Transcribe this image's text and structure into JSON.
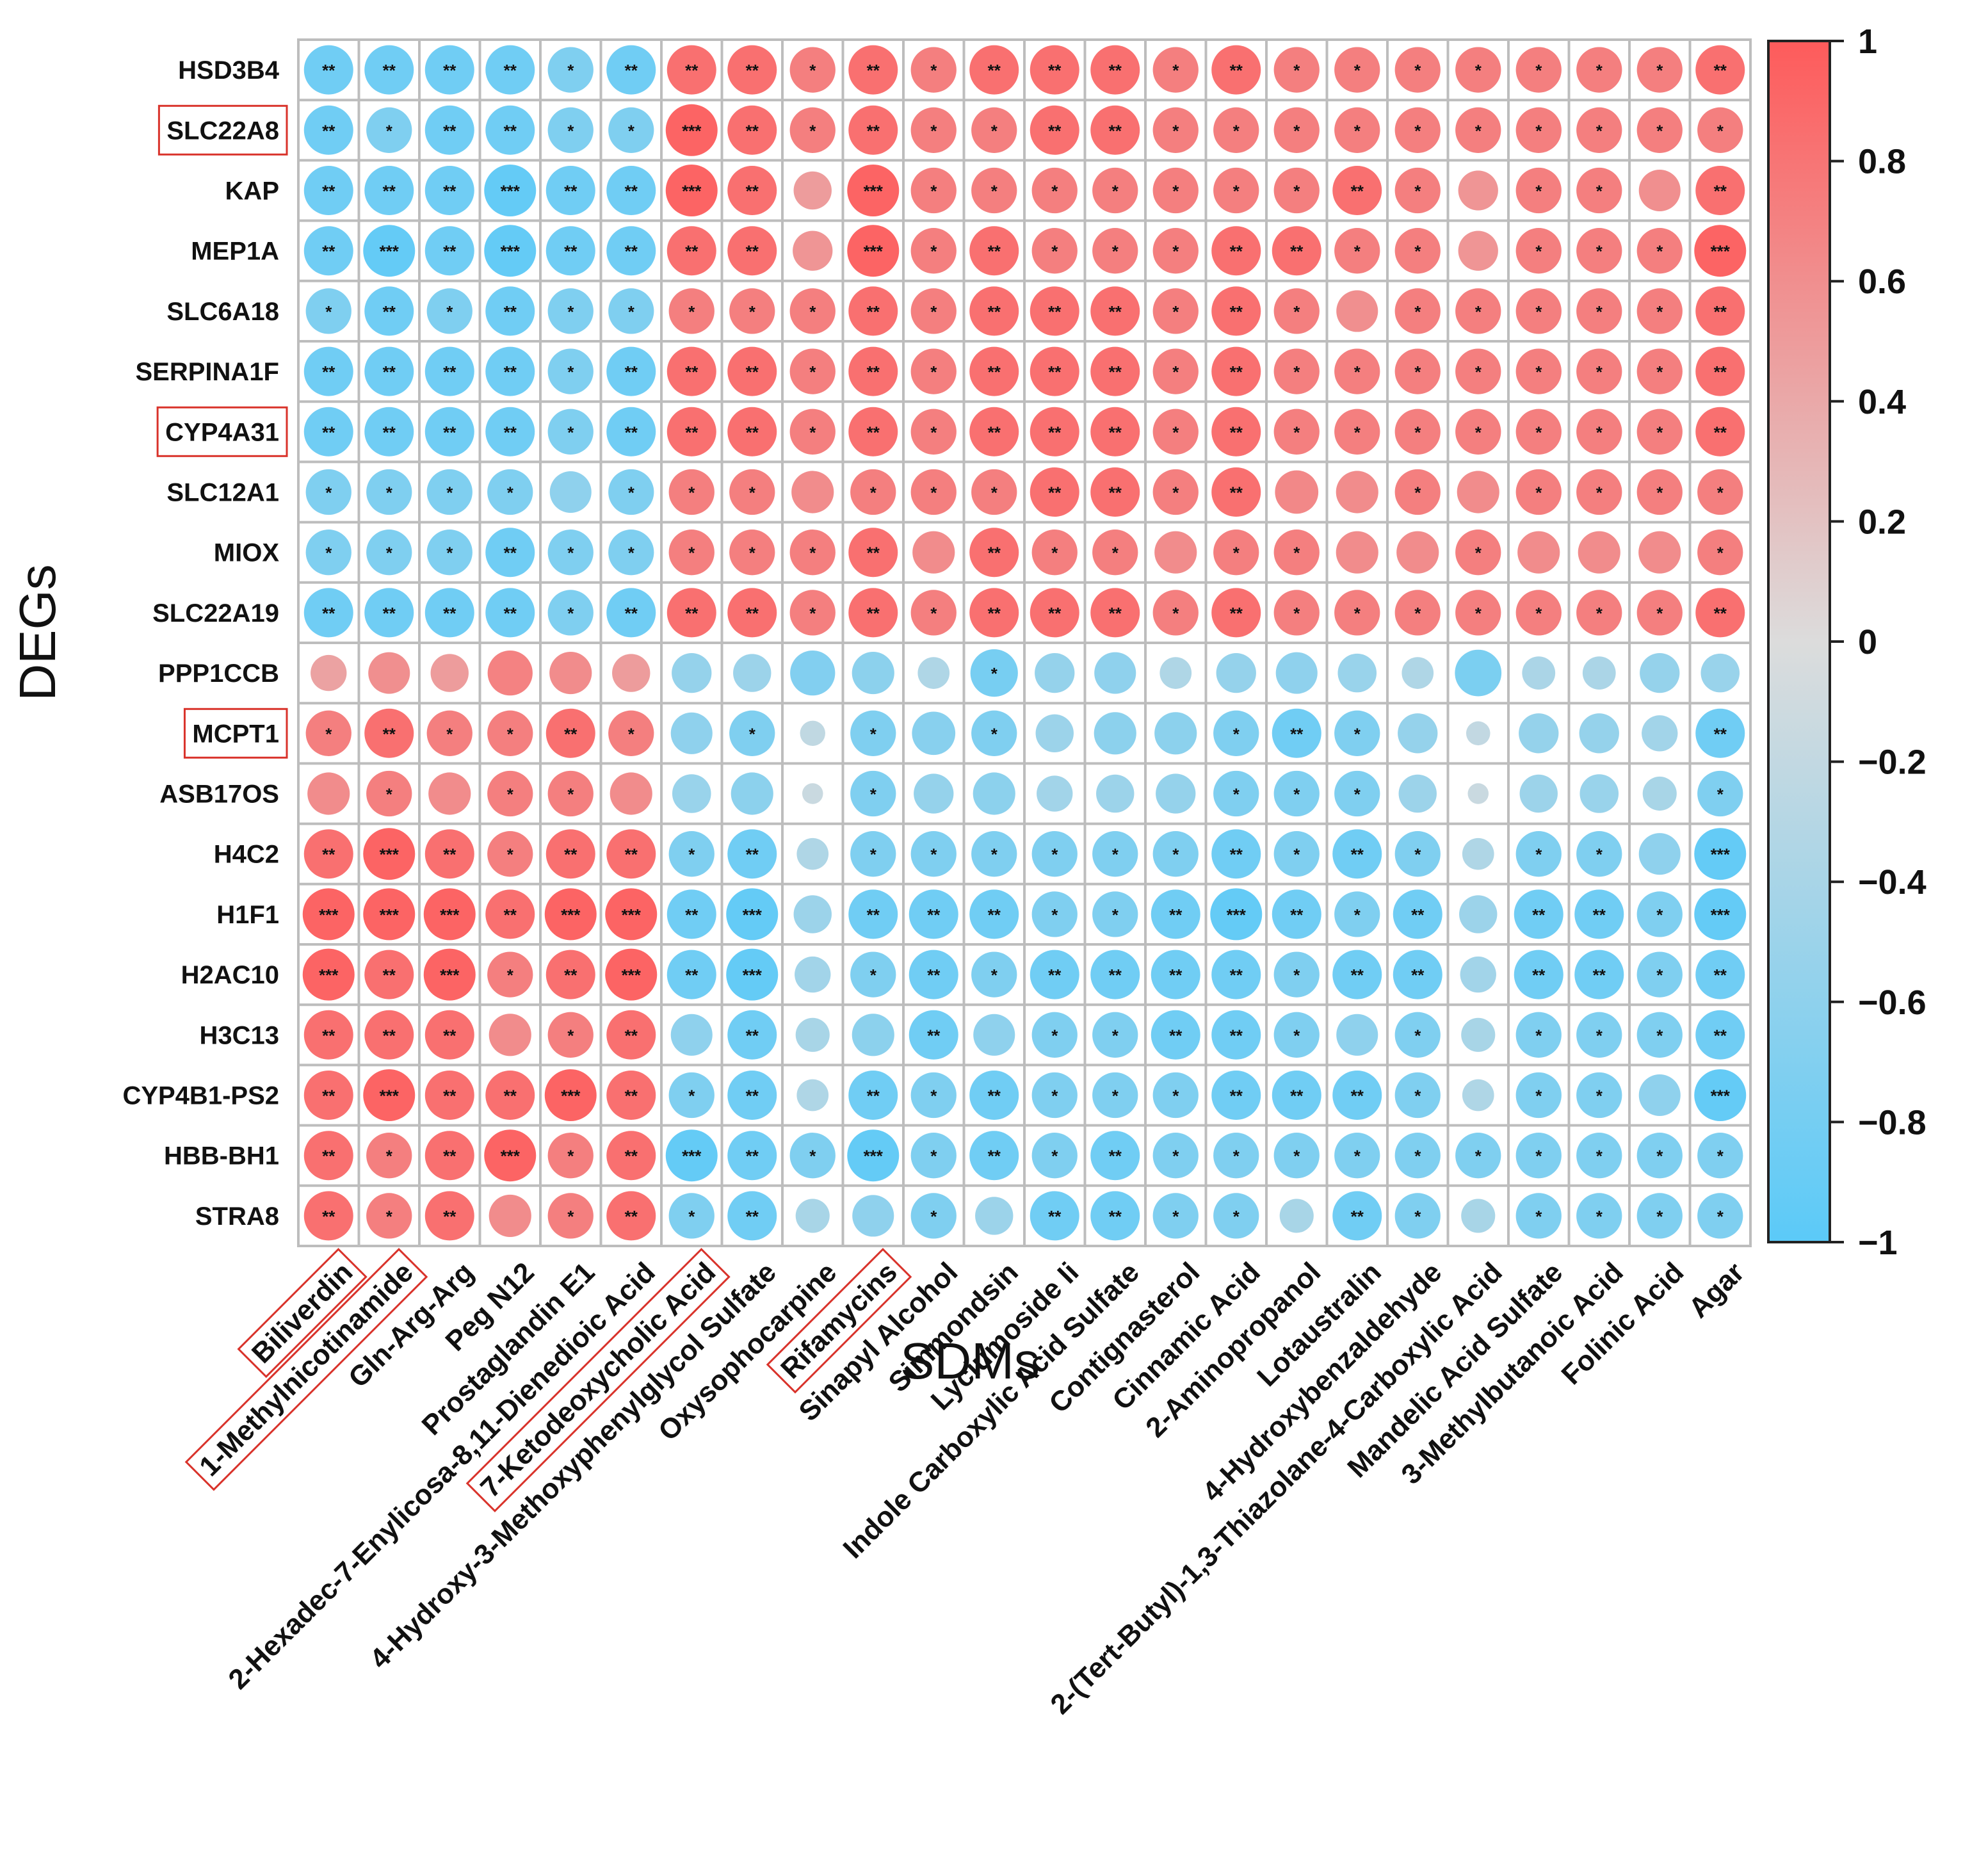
{
  "chart_data": {
    "type": "heatmap",
    "subtype": "correlation-circle",
    "xlabel": "SDMs",
    "ylabel": "DEGs",
    "rows": [
      "HSD3B4",
      "SLC22A8",
      "KAP",
      "MEP1A",
      "SLC6A18",
      "SERPINA1F",
      "CYP4A31",
      "SLC12A1",
      "MIOX",
      "SLC22A19",
      "PPP1CCB",
      "MCPT1",
      "ASB17OS",
      "H4C2",
      "H1F1",
      "H2AC10",
      "H3C13",
      "CYP4B1-PS2",
      "HBB-BH1",
      "STRA8"
    ],
    "columns": [
      "Biliverdin",
      "1-Methylnicotinamide",
      "Gln-Arg-Arg",
      "Peg N12",
      "Prostaglandin E1",
      "2-Hexadec-7-Enylicosa-8,11-Dienedioic Acid",
      "7-Ketodeoxycholic Acid",
      "4-Hydroxy-3-Methoxyphenylglycol Sulfate",
      "Oxysophocarpine",
      "Rifamycins",
      "Sinapyl Alcohol",
      "Simmondsin",
      "Lyciumoside Ii",
      "Indole Carboxylic Acid Sulfate",
      "Contignasterol",
      "Cinnamic Acid",
      "2-Aminopropanol",
      "Lotaustralin",
      "4-Hydroxybenzaldehyde",
      "2-(Tert-Butyl)-1,3-Thiazolane-4-Carboxylic Acid",
      "Mandelic Acid Sulfate",
      "3-Methylbutanoic Acid",
      "Folinic Acid",
      "Agar"
    ],
    "highlighted_rows": [
      "SLC22A8",
      "CYP4A31",
      "MCPT1"
    ],
    "highlighted_columns": [
      "Biliverdin",
      "1-Methylnicotinamide",
      "7-Ketodeoxycholic Acid",
      "Rifamycins"
    ],
    "significance": [
      [
        "**",
        "**",
        "**",
        "**",
        "*",
        "**",
        "**",
        "**",
        "*",
        "**",
        "*",
        "**",
        "**",
        "**",
        "*",
        "**",
        "*",
        "*",
        "*",
        "*",
        "*",
        "*",
        "*",
        "**"
      ],
      [
        "**",
        "*",
        "**",
        "**",
        "*",
        "*",
        "***",
        "**",
        "*",
        "**",
        "*",
        "*",
        "**",
        "**",
        "*",
        "*",
        "*",
        "*",
        "*",
        "*",
        "*",
        "*",
        "*",
        "*"
      ],
      [
        "**",
        "**",
        "**",
        "***",
        "**",
        "**",
        "***",
        "**",
        "",
        "***",
        "*",
        "*",
        "*",
        "*",
        "*",
        "*",
        "*",
        "**",
        "*",
        "",
        "*",
        "*",
        "",
        "**"
      ],
      [
        "**",
        "***",
        "**",
        "***",
        "**",
        "**",
        "**",
        "**",
        "",
        "***",
        "*",
        "**",
        "*",
        "*",
        "*",
        "**",
        "**",
        "*",
        "*",
        "",
        "*",
        "*",
        "*",
        "***"
      ],
      [
        "*",
        "**",
        "*",
        "**",
        "*",
        "*",
        "*",
        "*",
        "*",
        "**",
        "*",
        "**",
        "**",
        "**",
        "*",
        "**",
        "*",
        "",
        "*",
        "*",
        "*",
        "*",
        "*",
        "**"
      ],
      [
        "**",
        "**",
        "**",
        "**",
        "*",
        "**",
        "**",
        "**",
        "*",
        "**",
        "*",
        "**",
        "**",
        "**",
        "*",
        "**",
        "*",
        "*",
        "*",
        "*",
        "*",
        "*",
        "*",
        "**"
      ],
      [
        "**",
        "**",
        "**",
        "**",
        "*",
        "**",
        "**",
        "**",
        "*",
        "**",
        "*",
        "**",
        "**",
        "**",
        "*",
        "**",
        "*",
        "*",
        "*",
        "*",
        "*",
        "*",
        "*",
        "**"
      ],
      [
        "*",
        "*",
        "*",
        "*",
        "",
        "*",
        "*",
        "*",
        "",
        "*",
        "*",
        "*",
        "**",
        "**",
        "*",
        "**",
        "",
        "",
        "*",
        "",
        "*",
        "*",
        "*",
        "*"
      ],
      [
        "*",
        "*",
        "*",
        "**",
        "*",
        "*",
        "*",
        "*",
        "*",
        "**",
        "",
        "**",
        "*",
        "*",
        "",
        "*",
        "*",
        "",
        "",
        "*",
        "",
        "",
        "",
        "*"
      ],
      [
        "**",
        "**",
        "**",
        "**",
        "*",
        "**",
        "**",
        "**",
        "*",
        "**",
        "*",
        "**",
        "**",
        "**",
        "*",
        "**",
        "*",
        "*",
        "*",
        "*",
        "*",
        "*",
        "*",
        "**"
      ],
      [
        "",
        "",
        "",
        "",
        "",
        "",
        "",
        "",
        "",
        "",
        "",
        "*",
        "",
        "",
        "",
        "",
        "",
        "",
        "",
        "",
        "",
        "",
        "",
        ""
      ],
      [
        "*",
        "**",
        "*",
        "*",
        "**",
        "*",
        "",
        "*",
        "",
        "*",
        "",
        "*",
        "",
        "",
        "",
        "*",
        "**",
        "*",
        "",
        "",
        "",
        "",
        "",
        "**"
      ],
      [
        "",
        "*",
        "",
        "*",
        "*",
        "",
        "",
        "",
        "",
        "*",
        "",
        "",
        "",
        "",
        "",
        "*",
        "*",
        "*",
        "",
        "",
        "",
        "",
        "",
        "*"
      ],
      [
        "**",
        "***",
        "**",
        "*",
        "**",
        "**",
        "*",
        "**",
        "",
        "*",
        "*",
        "*",
        "*",
        "*",
        "*",
        "**",
        "*",
        "**",
        "*",
        "",
        "*",
        "*",
        "",
        "***"
      ],
      [
        "***",
        "***",
        "***",
        "**",
        "***",
        "***",
        "**",
        "***",
        "",
        "**",
        "**",
        "**",
        "*",
        "*",
        "**",
        "***",
        "**",
        "*",
        "**",
        "",
        "**",
        "**",
        "*",
        "***"
      ],
      [
        "***",
        "**",
        "***",
        "*",
        "**",
        "***",
        "**",
        "***",
        "",
        "*",
        "**",
        "*",
        "**",
        "**",
        "**",
        "**",
        "*",
        "**",
        "**",
        "",
        "**",
        "**",
        "*",
        "**"
      ],
      [
        "**",
        "**",
        "**",
        "",
        "*",
        "**",
        "",
        "**",
        "",
        "",
        "**",
        "",
        "*",
        "*",
        "**",
        "**",
        "*",
        "",
        "*",
        "",
        "*",
        "*",
        "*",
        "**"
      ],
      [
        "**",
        "***",
        "**",
        "**",
        "***",
        "**",
        "*",
        "**",
        "",
        "**",
        "*",
        "**",
        "*",
        "*",
        "*",
        "**",
        "**",
        "**",
        "*",
        "",
        "*",
        "*",
        "",
        "***"
      ],
      [
        "**",
        "*",
        "**",
        "***",
        "*",
        "**",
        "***",
        "**",
        "*",
        "***",
        "*",
        "**",
        "*",
        "**",
        "*",
        "*",
        "*",
        "*",
        "*",
        "*",
        "*",
        "*",
        "*",
        "*"
      ],
      [
        "**",
        "*",
        "**",
        "",
        "*",
        "**",
        "*",
        "**",
        "",
        "",
        "*",
        "",
        "**",
        "**",
        "*",
        "*",
        "",
        "**",
        "*",
        "",
        "*",
        "*",
        "*",
        "*"
      ]
    ],
    "values": [
      [
        -0.84,
        -0.84,
        -0.84,
        -0.84,
        -0.72,
        -0.84,
        0.84,
        0.84,
        0.72,
        0.84,
        0.72,
        0.84,
        0.84,
        0.84,
        0.72,
        0.84,
        0.72,
        0.72,
        0.72,
        0.72,
        0.72,
        0.72,
        0.72,
        0.84
      ],
      [
        -0.84,
        -0.72,
        -0.84,
        -0.84,
        -0.72,
        -0.72,
        0.93,
        0.84,
        0.72,
        0.84,
        0.72,
        0.72,
        0.84,
        0.84,
        0.72,
        0.72,
        0.72,
        0.72,
        0.72,
        0.72,
        0.72,
        0.72,
        0.72,
        0.72
      ],
      [
        -0.84,
        -0.84,
        -0.84,
        -0.93,
        -0.84,
        -0.84,
        0.93,
        0.84,
        0.5,
        0.93,
        0.72,
        0.72,
        0.72,
        0.72,
        0.72,
        0.72,
        0.72,
        0.84,
        0.72,
        0.55,
        0.72,
        0.72,
        0.6,
        0.84
      ],
      [
        -0.84,
        -0.93,
        -0.84,
        -0.93,
        -0.84,
        -0.84,
        0.84,
        0.84,
        0.55,
        0.93,
        0.72,
        0.84,
        0.72,
        0.72,
        0.72,
        0.84,
        0.84,
        0.72,
        0.72,
        0.55,
        0.72,
        0.72,
        0.72,
        0.93
      ],
      [
        -0.72,
        -0.84,
        -0.72,
        -0.84,
        -0.72,
        -0.72,
        0.72,
        0.72,
        0.72,
        0.84,
        0.72,
        0.84,
        0.84,
        0.84,
        0.72,
        0.84,
        0.72,
        0.6,
        0.72,
        0.72,
        0.72,
        0.72,
        0.72,
        0.84
      ],
      [
        -0.84,
        -0.84,
        -0.84,
        -0.84,
        -0.72,
        -0.84,
        0.84,
        0.84,
        0.72,
        0.84,
        0.72,
        0.84,
        0.84,
        0.84,
        0.72,
        0.84,
        0.72,
        0.72,
        0.72,
        0.72,
        0.72,
        0.72,
        0.72,
        0.84
      ],
      [
        -0.84,
        -0.84,
        -0.84,
        -0.84,
        -0.72,
        -0.84,
        0.84,
        0.84,
        0.72,
        0.84,
        0.72,
        0.84,
        0.84,
        0.84,
        0.72,
        0.84,
        0.72,
        0.72,
        0.72,
        0.72,
        0.72,
        0.72,
        0.72,
        0.84
      ],
      [
        -0.72,
        -0.72,
        -0.72,
        -0.72,
        -0.6,
        -0.72,
        0.72,
        0.72,
        0.62,
        0.72,
        0.72,
        0.72,
        0.84,
        0.84,
        0.72,
        0.84,
        0.65,
        0.62,
        0.72,
        0.62,
        0.72,
        0.72,
        0.72,
        0.72
      ],
      [
        -0.72,
        -0.72,
        -0.72,
        -0.84,
        -0.72,
        -0.72,
        0.72,
        0.72,
        0.72,
        0.84,
        0.62,
        0.84,
        0.72,
        0.72,
        0.62,
        0.72,
        0.72,
        0.62,
        0.62,
        0.72,
        0.62,
        0.62,
        0.62,
        0.72
      ],
      [
        -0.84,
        -0.84,
        -0.84,
        -0.84,
        -0.72,
        -0.84,
        0.84,
        0.84,
        0.72,
        0.84,
        0.72,
        0.84,
        0.84,
        0.84,
        0.72,
        0.84,
        0.72,
        0.72,
        0.72,
        0.72,
        0.72,
        0.72,
        0.72,
        0.84
      ],
      [
        0.45,
        0.6,
        0.5,
        0.7,
        0.62,
        0.5,
        -0.55,
        -0.5,
        -0.7,
        -0.62,
        -0.35,
        -0.78,
        -0.55,
        -0.6,
        -0.35,
        -0.55,
        -0.6,
        -0.52,
        -0.35,
        -0.75,
        -0.38,
        -0.38,
        -0.55,
        -0.52
      ],
      [
        0.72,
        0.84,
        0.72,
        0.72,
        0.84,
        0.72,
        -0.6,
        -0.72,
        -0.22,
        -0.72,
        -0.65,
        -0.72,
        -0.5,
        -0.62,
        -0.62,
        -0.72,
        -0.84,
        -0.72,
        -0.55,
        -0.2,
        -0.55,
        -0.55,
        -0.45,
        -0.84
      ],
      [
        0.62,
        0.72,
        0.62,
        0.72,
        0.72,
        0.62,
        -0.52,
        -0.62,
        -0.15,
        -0.72,
        -0.55,
        -0.62,
        -0.45,
        -0.5,
        -0.55,
        -0.72,
        -0.72,
        -0.72,
        -0.5,
        -0.15,
        -0.5,
        -0.52,
        -0.4,
        -0.72
      ],
      [
        0.84,
        0.93,
        0.84,
        0.72,
        0.84,
        0.84,
        -0.72,
        -0.84,
        -0.35,
        -0.72,
        -0.72,
        -0.72,
        -0.72,
        -0.72,
        -0.72,
        -0.84,
        -0.72,
        -0.84,
        -0.72,
        -0.35,
        -0.72,
        -0.72,
        -0.6,
        -0.93
      ],
      [
        0.93,
        0.93,
        0.93,
        0.84,
        0.93,
        0.93,
        -0.84,
        -0.93,
        -0.5,
        -0.84,
        -0.84,
        -0.84,
        -0.72,
        -0.72,
        -0.84,
        -0.93,
        -0.84,
        -0.72,
        -0.84,
        -0.5,
        -0.84,
        -0.84,
        -0.72,
        -0.93
      ],
      [
        0.93,
        0.84,
        0.93,
        0.72,
        0.84,
        0.93,
        -0.84,
        -0.93,
        -0.45,
        -0.72,
        -0.84,
        -0.72,
        -0.84,
        -0.84,
        -0.84,
        -0.84,
        -0.72,
        -0.84,
        -0.84,
        -0.45,
        -0.84,
        -0.84,
        -0.72,
        -0.84
      ],
      [
        0.84,
        0.84,
        0.84,
        0.62,
        0.72,
        0.84,
        -0.6,
        -0.84,
        -0.4,
        -0.62,
        -0.84,
        -0.6,
        -0.72,
        -0.72,
        -0.84,
        -0.84,
        -0.72,
        -0.6,
        -0.72,
        -0.4,
        -0.72,
        -0.72,
        -0.72,
        -0.84
      ],
      [
        0.84,
        0.93,
        0.84,
        0.84,
        0.93,
        0.84,
        -0.72,
        -0.84,
        -0.35,
        -0.84,
        -0.72,
        -0.84,
        -0.72,
        -0.72,
        -0.72,
        -0.84,
        -0.84,
        -0.84,
        -0.72,
        -0.35,
        -0.72,
        -0.72,
        -0.6,
        -0.93
      ],
      [
        0.84,
        0.72,
        0.84,
        0.93,
        0.72,
        0.84,
        -0.93,
        -0.84,
        -0.72,
        -0.93,
        -0.72,
        -0.84,
        -0.72,
        -0.84,
        -0.72,
        -0.72,
        -0.72,
        -0.72,
        -0.72,
        -0.72,
        -0.72,
        -0.72,
        -0.72,
        -0.72
      ],
      [
        0.84,
        0.72,
        0.84,
        0.62,
        0.72,
        0.84,
        -0.72,
        -0.84,
        -0.4,
        -0.6,
        -0.72,
        -0.5,
        -0.84,
        -0.84,
        -0.72,
        -0.72,
        -0.4,
        -0.84,
        -0.72,
        -0.4,
        -0.72,
        -0.72,
        -0.72,
        -0.72
      ]
    ],
    "colorbar": {
      "range": [
        -1,
        1
      ],
      "ticks": [
        1,
        0.8,
        0.6,
        0.4,
        0.2,
        0,
        -0.2,
        -0.4,
        -0.6,
        -0.8,
        -1
      ],
      "tick_labels": [
        "1",
        "0.8",
        "0.6",
        "0.4",
        "0.2",
        "0",
        "−0.2",
        "−0.4",
        "−0.6",
        "−0.8",
        "−1"
      ],
      "colors": {
        "negative": "#5bcaf8",
        "zero": "#dcdcdc",
        "positive": "#fe5b5b"
      }
    },
    "grid_color": "#bdbdbd",
    "highlight_color": "#d9332b"
  }
}
